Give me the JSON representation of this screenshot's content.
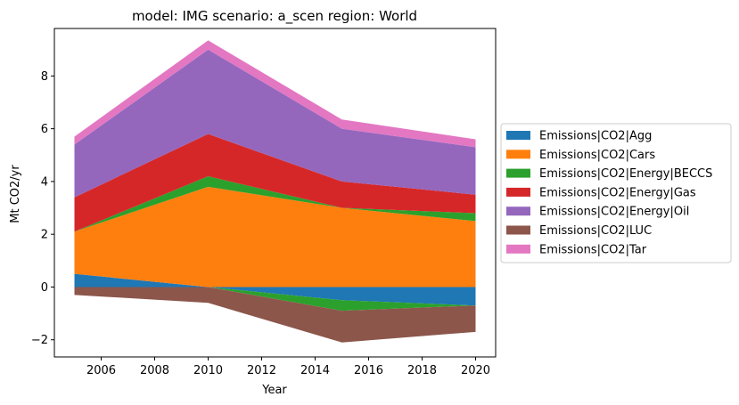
{
  "chart_data": {
    "type": "area",
    "stacked": true,
    "title": "model: IMG scenario: a_scen region: World",
    "xlabel": "Year",
    "ylabel": "Mt CO2/yr",
    "x": [
      2005,
      2010,
      2015,
      2020
    ],
    "xticks": [
      "2006",
      "2008",
      "2010",
      "2012",
      "2014",
      "2016",
      "2018",
      "2020"
    ],
    "xtick_values": [
      2006,
      2008,
      2010,
      2012,
      2014,
      2016,
      2018,
      2020
    ],
    "yticks": [
      "−2",
      "0",
      "2",
      "4",
      "6",
      "8"
    ],
    "ytick_values": [
      -2,
      0,
      2,
      4,
      6,
      8
    ],
    "xlim": [
      2004.25,
      2020.75
    ],
    "ylim": [
      -2.65,
      9.8
    ],
    "grid": false,
    "legend_position": "right-outside",
    "series": [
      {
        "name": "Emissions|CO2|Agg",
        "color": "#1f77b4",
        "values": [
          0.5,
          0,
          -0.5,
          -0.7
        ]
      },
      {
        "name": "Emissions|CO2|Cars",
        "color": "#ff7f0e",
        "values": [
          1.6,
          3.8,
          3.0,
          2.5
        ]
      },
      {
        "name": "Emissions|CO2|Energy|BECCS",
        "color": "#2ca02c",
        "values": [
          0,
          0.4,
          -0.4,
          0.3
        ]
      },
      {
        "name": "Emissions|CO2|Energy|Gas",
        "color": "#d62728",
        "values": [
          1.3,
          1.6,
          1.0,
          0.7
        ]
      },
      {
        "name": "Emissions|CO2|Energy|Oil",
        "color": "#9467bd",
        "values": [
          2.0,
          3.2,
          2.0,
          1.8
        ]
      },
      {
        "name": "Emissions|CO2|LUC",
        "color": "#8c564b",
        "values": [
          -0.3,
          -0.6,
          -1.2,
          -1.0
        ]
      },
      {
        "name": "Emissions|CO2|Tar",
        "color": "#e377c2",
        "values": [
          0.3,
          0.35,
          0.35,
          0.3
        ]
      }
    ]
  }
}
